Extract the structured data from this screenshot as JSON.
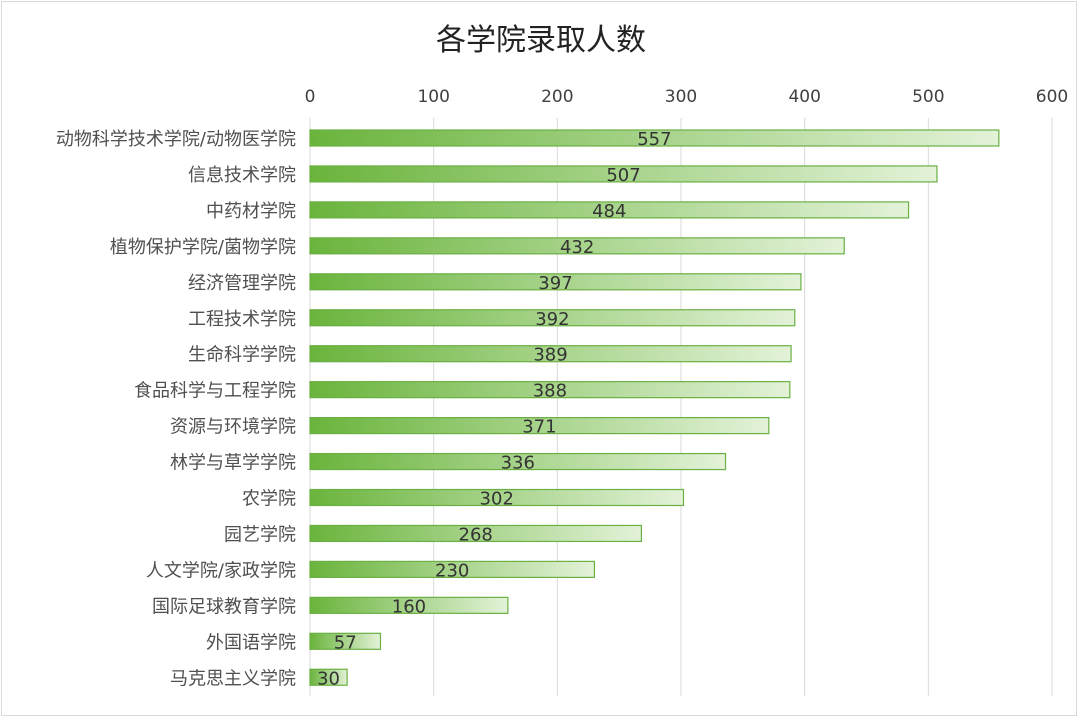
{
  "chart_data": {
    "type": "bar",
    "orientation": "horizontal",
    "title": "各学院录取人数",
    "categories": [
      "动物科学技术学院/动物医学院",
      "信息技术学院",
      "中药材学院",
      "植物保护学院/菌物学院",
      "经济管理学院",
      "工程技术学院",
      "生命科学学院",
      "食品科学与工程学院",
      "资源与环境学院",
      "林学与草学学院",
      "农学院",
      "园艺学院",
      "人文学院/家政学院",
      "国际足球教育学院",
      "外国语学院",
      "马克思主义学院"
    ],
    "values": [
      557,
      507,
      484,
      432,
      397,
      392,
      389,
      388,
      371,
      336,
      302,
      268,
      230,
      160,
      57,
      30
    ],
    "xlim": [
      0,
      600
    ],
    "ticks": [
      0,
      100,
      200,
      300,
      400,
      500,
      600
    ],
    "axis_position": "top",
    "grid": true,
    "legend": "none",
    "colors": {
      "bar_start": "#6ab43c",
      "bar_end": "#e3f2d8",
      "bar_border": "#6bb043",
      "grid": "#d9d9d9"
    }
  }
}
